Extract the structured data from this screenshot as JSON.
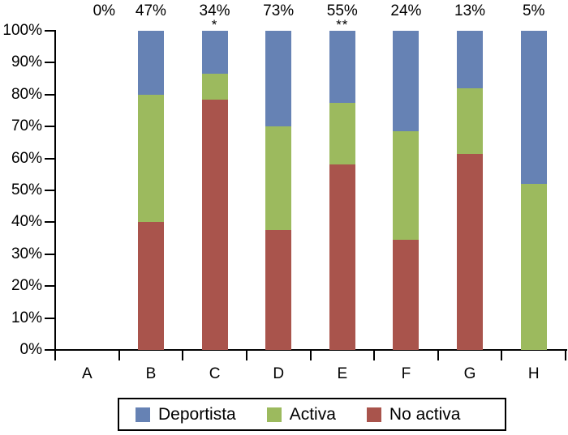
{
  "figure": {
    "background": "#ffffff",
    "axis_color": "#000000",
    "text_color": "#000000"
  },
  "chart_data": {
    "type": "bar",
    "subtype": "stacked_percent_column",
    "title": "",
    "xlabel": "",
    "ylabel": "",
    "grid": false,
    "categories": [
      "A",
      "B",
      "C",
      "D",
      "E",
      "F",
      "G",
      "H"
    ],
    "top_labels": [
      "0%",
      "47%",
      "34%",
      "73%",
      "55%",
      "24%",
      "13%",
      "5%"
    ],
    "significance_marks": [
      "",
      "",
      "*",
      "",
      "**",
      "",
      "",
      ""
    ],
    "series": [
      {
        "name": "No activa",
        "color": "#a9544c",
        "values": [
          0,
          40,
          78.5,
          37.5,
          58,
          34.5,
          61.5,
          0
        ]
      },
      {
        "name": "Activa",
        "color": "#9cba5e",
        "values": [
          0,
          40,
          8,
          32.5,
          19.5,
          34,
          20.5,
          52
        ]
      },
      {
        "name": "Deportista",
        "color": "#6682b4",
        "values": [
          0,
          20,
          13.5,
          30,
          22.5,
          31.5,
          18,
          48
        ]
      }
    ],
    "stack_order_bottom_to_top": [
      "No activa",
      "Activa",
      "Deportista"
    ],
    "y_axis": {
      "min": 0,
      "max": 100,
      "step": 10,
      "tick_suffix": "%",
      "tick_labels": [
        "0%",
        "10%",
        "20%",
        "30%",
        "40%",
        "50%",
        "60%",
        "70%",
        "80%",
        "90%",
        "100%"
      ]
    },
    "x_axis": {
      "tick_labels": [
        "A",
        "B",
        "C",
        "D",
        "E",
        "F",
        "G",
        "H"
      ]
    },
    "legend": {
      "position": "bottom",
      "items": [
        {
          "label": "Deportista",
          "color": "#6682b4"
        },
        {
          "label": "Activa",
          "color": "#9cba5e"
        },
        {
          "label": "No activa",
          "color": "#a9544c"
        }
      ]
    }
  }
}
